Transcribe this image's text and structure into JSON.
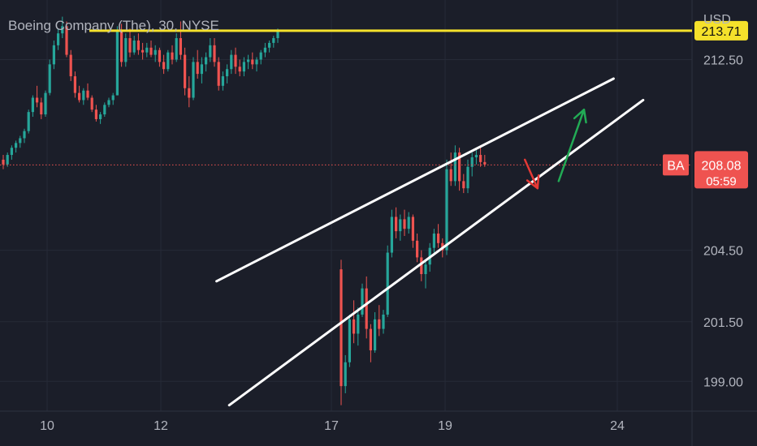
{
  "header": {
    "title": "Boeing Company (The), 30, NYSE",
    "currency": "USD"
  },
  "colors": {
    "background": "#1b1e29",
    "up": "#26a69a",
    "down": "#ef5350",
    "resistance": "#f5e12b",
    "trendline": "#ffffff",
    "arrow_up": "#22ab55",
    "arrow_down": "#e53935",
    "axis_text": "#b2b5be"
  },
  "chart_data": {
    "type": "candlestick",
    "symbol": "BA",
    "interval": "30",
    "exchange": "NYSE",
    "x_ticks": [
      "10",
      "12",
      "17",
      "19",
      "24"
    ],
    "y_ticks": [
      212.5,
      204.5,
      201.5,
      199.0
    ],
    "y_tick_labels": [
      "212.50",
      "204.50",
      "201.50",
      "199.00"
    ],
    "ylim": [
      197.75,
      215.0
    ],
    "resistance_level": {
      "value": 213.71,
      "label": "213.71"
    },
    "last_price": {
      "symbol": "BA",
      "value": 208.08,
      "label": "208.08",
      "countdown": "05:59"
    },
    "grid": true,
    "candles": [
      [
        208.3,
        208.5,
        207.9,
        208.1
      ],
      [
        208.1,
        208.6,
        208.0,
        208.5
      ],
      [
        208.5,
        208.9,
        208.3,
        208.8
      ],
      [
        208.8,
        209.1,
        208.6,
        209.0
      ],
      [
        209.0,
        209.3,
        208.8,
        209.2
      ],
      [
        209.2,
        209.6,
        209.0,
        209.5
      ],
      [
        209.5,
        210.4,
        209.4,
        210.3
      ],
      [
        210.3,
        211.0,
        210.1,
        210.9
      ],
      [
        210.9,
        211.4,
        210.5,
        210.7
      ],
      [
        210.7,
        210.9,
        210.0,
        210.2
      ],
      [
        210.2,
        211.2,
        210.1,
        211.1
      ],
      [
        211.1,
        212.5,
        211.0,
        212.3
      ],
      [
        212.3,
        213.3,
        212.1,
        213.1
      ],
      [
        213.1,
        213.8,
        212.9,
        213.6
      ],
      [
        213.6,
        214.3,
        213.4,
        213.9
      ],
      [
        213.9,
        214.1,
        212.6,
        212.7
      ],
      [
        212.7,
        212.9,
        211.6,
        211.8
      ],
      [
        211.8,
        212.0,
        210.9,
        211.1
      ],
      [
        211.1,
        211.4,
        210.7,
        210.8
      ],
      [
        210.8,
        211.3,
        210.6,
        211.2
      ],
      [
        211.2,
        211.5,
        210.8,
        210.9
      ],
      [
        210.9,
        211.0,
        210.3,
        210.4
      ],
      [
        210.4,
        210.6,
        209.9,
        210.0
      ],
      [
        210.0,
        210.3,
        209.8,
        210.2
      ],
      [
        210.2,
        210.7,
        210.1,
        210.6
      ],
      [
        210.6,
        210.9,
        210.5,
        210.8
      ],
      [
        210.8,
        211.1,
        210.6,
        211.0
      ],
      [
        211.0,
        213.9,
        211.0,
        213.7
      ],
      [
        213.7,
        214.0,
        212.2,
        212.4
      ],
      [
        212.4,
        213.6,
        212.2,
        213.4
      ],
      [
        213.4,
        213.8,
        212.6,
        212.8
      ],
      [
        212.8,
        213.5,
        212.7,
        213.3
      ],
      [
        213.3,
        213.6,
        212.7,
        212.9
      ],
      [
        212.9,
        213.2,
        212.5,
        212.8
      ],
      [
        212.8,
        213.2,
        212.6,
        213.0
      ],
      [
        213.0,
        213.3,
        212.6,
        212.7
      ],
      [
        212.7,
        213.1,
        212.4,
        212.9
      ],
      [
        212.9,
        213.0,
        212.2,
        212.4
      ],
      [
        212.4,
        212.7,
        211.9,
        212.1
      ],
      [
        212.1,
        212.9,
        212.0,
        212.8
      ],
      [
        212.8,
        213.1,
        212.3,
        212.5
      ],
      [
        212.5,
        213.6,
        212.4,
        213.4
      ],
      [
        213.4,
        214.1,
        212.5,
        212.7
      ],
      [
        212.7,
        213.0,
        211.0,
        211.3
      ],
      [
        211.3,
        211.8,
        210.5,
        210.9
      ],
      [
        210.9,
        212.6,
        210.8,
        212.4
      ],
      [
        212.4,
        212.9,
        211.7,
        211.9
      ],
      [
        211.9,
        212.6,
        211.5,
        212.3
      ],
      [
        212.3,
        212.8,
        212.0,
        212.6
      ],
      [
        212.6,
        213.4,
        212.4,
        213.1
      ],
      [
        213.1,
        213.4,
        212.2,
        212.4
      ],
      [
        212.4,
        212.6,
        211.2,
        211.4
      ],
      [
        211.4,
        212.0,
        211.2,
        211.8
      ],
      [
        211.8,
        212.3,
        211.5,
        212.1
      ],
      [
        212.1,
        212.9,
        211.9,
        212.7
      ],
      [
        212.7,
        213.0,
        211.9,
        212.2
      ],
      [
        212.2,
        212.5,
        211.8,
        212.0
      ],
      [
        212.0,
        212.6,
        211.8,
        212.4
      ],
      [
        212.4,
        212.7,
        212.1,
        212.5
      ],
      [
        212.5,
        212.8,
        212.1,
        212.3
      ],
      [
        212.3,
        212.6,
        212.0,
        212.5
      ],
      [
        212.5,
        212.9,
        212.3,
        212.8
      ],
      [
        212.8,
        213.2,
        212.6,
        213.0
      ],
      [
        213.0,
        213.3,
        212.8,
        213.2
      ],
      [
        213.2,
        213.5,
        213.0,
        213.4
      ],
      [
        213.4,
        213.8,
        213.2,
        213.7
      ],
      [
        203.7,
        204.1,
        198.0,
        198.8
      ],
      [
        198.8,
        200.1,
        198.5,
        199.8
      ],
      [
        199.8,
        201.8,
        199.6,
        201.6
      ],
      [
        201.6,
        202.4,
        200.6,
        201.0
      ],
      [
        201.0,
        202.1,
        200.5,
        201.8
      ],
      [
        201.8,
        203.1,
        201.7,
        202.9
      ],
      [
        202.9,
        203.4,
        200.8,
        201.2
      ],
      [
        201.2,
        201.4,
        199.8,
        200.3
      ],
      [
        200.3,
        201.9,
        200.2,
        201.6
      ],
      [
        201.6,
        202.2,
        200.9,
        201.2
      ],
      [
        201.2,
        202.0,
        201.0,
        201.8
      ],
      [
        201.8,
        204.7,
        201.7,
        204.4
      ],
      [
        204.4,
        206.2,
        204.2,
        205.9
      ],
      [
        205.9,
        206.3,
        205.0,
        205.3
      ],
      [
        205.3,
        206.0,
        204.9,
        205.8
      ],
      [
        205.8,
        206.2,
        205.1,
        205.4
      ],
      [
        205.4,
        206.1,
        205.2,
        205.9
      ],
      [
        205.9,
        206.0,
        204.6,
        204.9
      ],
      [
        204.9,
        205.2,
        204.0,
        204.2
      ],
      [
        204.2,
        204.5,
        203.2,
        203.5
      ],
      [
        203.5,
        204.1,
        202.9,
        203.9
      ],
      [
        203.9,
        204.8,
        203.6,
        204.6
      ],
      [
        204.6,
        205.4,
        204.4,
        205.2
      ],
      [
        205.2,
        205.6,
        204.6,
        204.8
      ],
      [
        204.8,
        205.0,
        204.2,
        204.5
      ],
      [
        204.5,
        208.3,
        204.3,
        207.9
      ],
      [
        207.9,
        208.6,
        207.2,
        207.4
      ],
      [
        207.4,
        208.9,
        207.2,
        208.6
      ],
      [
        208.6,
        208.8,
        207.0,
        207.4
      ],
      [
        207.4,
        207.7,
        206.9,
        207.1
      ],
      [
        207.1,
        208.3,
        206.9,
        208.0
      ],
      [
        208.0,
        208.6,
        207.6,
        208.4
      ],
      [
        208.4,
        208.7,
        208.1,
        208.5
      ],
      [
        208.5,
        208.9,
        208.0,
        208.2
      ],
      [
        208.2,
        208.5,
        208.0,
        208.1
      ]
    ],
    "annotations": {
      "channel_upper": [
        {
          "i": 50.5,
          "y": 203.2
        },
        {
          "i": 130.5,
          "y": 211.7
        }
      ],
      "channel_lower": [
        {
          "i": 53.5,
          "y": 198.0
        },
        {
          "i": 137.5,
          "y": 210.8
        }
      ],
      "arrow_up": [
        {
          "i": 117.5,
          "y": 207.4
        },
        {
          "i": 123.5,
          "y": 210.4
        }
      ],
      "arrow_down": [
        {
          "i": 109.5,
          "y": 208.3
        },
        {
          "i": 112.5,
          "y": 207.1
        }
      ]
    }
  }
}
